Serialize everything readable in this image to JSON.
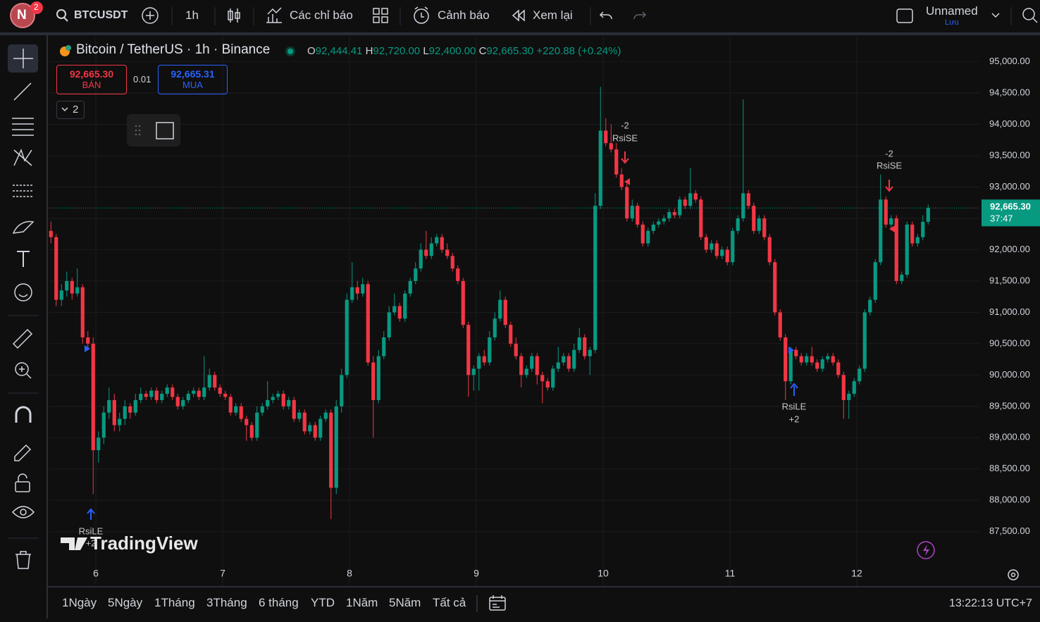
{
  "toolbar": {
    "avatar": "N",
    "badge": "2",
    "symbol": "BTCUSDT",
    "interval": "1h",
    "indicators": "Các chỉ báo",
    "alerts": "Cảnh báo",
    "replay": "Xem lại",
    "layout_name": "Unnamed",
    "save": "Lưu"
  },
  "legend": {
    "o_label": "O",
    "o": "92,444.41",
    "h_label": "H",
    "h": "92,720.00",
    "l_label": "L",
    "l": "92,400.00",
    "c_label": "C",
    "c": "92,665.30",
    "change": "+220.88 (+0.24%)"
  },
  "trade": {
    "sell_price": "92,665.30",
    "sell": "BÁN",
    "quantity": "0.01",
    "buy_price": "92,665.31",
    "buy": "MUA"
  },
  "indicator_toggle": "2",
  "watermark": "TradingView",
  "chart_data": {
    "type": "candlestick",
    "title": "Bitcoin / TetherUS · 1h · Binance",
    "up_color": "#089981",
    "down_color": "#f23645",
    "grid": true,
    "xlim": [
      -0.3,
      175.7
    ],
    "xticks": [
      {
        "value": 8.5,
        "label": "6"
      },
      {
        "value": 32.5,
        "label": "7"
      },
      {
        "value": 56.5,
        "label": "8"
      },
      {
        "value": 80.5,
        "label": "9"
      },
      {
        "value": 104.5,
        "label": "10"
      },
      {
        "value": 128.5,
        "label": "11"
      },
      {
        "value": 152.5,
        "label": "12"
      }
    ],
    "ylim": [
      86620,
      95400
    ],
    "yticks": [
      {
        "value": 87500,
        "label": "87,500.00"
      },
      {
        "value": 88000,
        "label": "88,000.00"
      },
      {
        "value": 88500,
        "label": "88,500.00"
      },
      {
        "value": 89000,
        "label": "89,000.00"
      },
      {
        "value": 89500,
        "label": "89,500.00"
      },
      {
        "value": 90000,
        "label": "90,000.00"
      },
      {
        "value": 90500,
        "label": "90,500.00"
      },
      {
        "value": 91000,
        "label": "91,000.00"
      },
      {
        "value": 91500,
        "label": "91,500.00"
      },
      {
        "value": 92000,
        "label": "92,000.00"
      },
      {
        "value": 92500,
        "label": "92,500.00"
      },
      {
        "value": 93000,
        "label": "93,000.00"
      },
      {
        "value": 93500,
        "label": "93,500.00"
      },
      {
        "value": 94000,
        "label": "94,000.00"
      },
      {
        "value": 94500,
        "label": "94,500.00"
      },
      {
        "value": 95000,
        "label": "95,000.00"
      }
    ],
    "last_price": {
      "value": 92665.3,
      "label": "92,665.30",
      "countdown": "37:47"
    },
    "signals": [
      {
        "name": "RsiLE",
        "qty": "+2"
      },
      {
        "name": "RsiSE",
        "qty": "-2"
      },
      {
        "name": "RsiLE",
        "qty": "+2"
      },
      {
        "name": "RsiSE",
        "qty": "-2"
      }
    ],
    "ohlc": [
      [
        92300,
        92450,
        92100,
        92200
      ],
      [
        92200,
        92250,
        91100,
        91200
      ],
      [
        91200,
        91450,
        91100,
        91350
      ],
      [
        91350,
        91650,
        91250,
        91500
      ],
      [
        91500,
        91550,
        91200,
        91300
      ],
      [
        91300,
        91700,
        91250,
        91400
      ],
      [
        91400,
        91450,
        90500,
        90600
      ],
      [
        90600,
        90700,
        90400,
        90500
      ],
      [
        90500,
        90600,
        88100,
        88800
      ],
      [
        88800,
        89100,
        88600,
        89000
      ],
      [
        89000,
        89500,
        88900,
        89400
      ],
      [
        89400,
        89800,
        89300,
        89600
      ],
      [
        89600,
        89700,
        89100,
        89200
      ],
      [
        89200,
        89400,
        89100,
        89300
      ],
      [
        89300,
        89600,
        89200,
        89500
      ],
      [
        89500,
        89550,
        89300,
        89400
      ],
      [
        89400,
        89700,
        89350,
        89600
      ],
      [
        89600,
        89800,
        89550,
        89700
      ],
      [
        89700,
        89750,
        89600,
        89650
      ],
      [
        89650,
        89800,
        89600,
        89750
      ],
      [
        89750,
        89800,
        89550,
        89600
      ],
      [
        89600,
        89750,
        89550,
        89700
      ],
      [
        89700,
        89850,
        89650,
        89800
      ],
      [
        89800,
        89850,
        89600,
        89650
      ],
      [
        89650,
        89700,
        89450,
        89500
      ],
      [
        89500,
        89650,
        89450,
        89600
      ],
      [
        89600,
        89750,
        89550,
        89700
      ],
      [
        89700,
        89800,
        89650,
        89750
      ],
      [
        89750,
        89800,
        89600,
        89650
      ],
      [
        89650,
        90300,
        89600,
        89800
      ],
      [
        89800,
        90100,
        89750,
        90000
      ],
      [
        90000,
        90050,
        89750,
        89800
      ],
      [
        89800,
        89850,
        89650,
        89700
      ],
      [
        89700,
        89750,
        89600,
        89650
      ],
      [
        89650,
        89700,
        89350,
        89400
      ],
      [
        89400,
        89550,
        89350,
        89500
      ],
      [
        89500,
        89550,
        89250,
        89300
      ],
      [
        89300,
        89350,
        88950,
        89200
      ],
      [
        89200,
        89250,
        88950,
        89000
      ],
      [
        89000,
        89500,
        88950,
        89400
      ],
      [
        89400,
        89550,
        89350,
        89500
      ],
      [
        89500,
        89900,
        89450,
        89600
      ],
      [
        89600,
        89700,
        89550,
        89650
      ],
      [
        89650,
        89750,
        89600,
        89700
      ],
      [
        89700,
        89750,
        89450,
        89500
      ],
      [
        89500,
        89650,
        89450,
        89600
      ],
      [
        89600,
        89650,
        89250,
        89300
      ],
      [
        89300,
        89450,
        89250,
        89400
      ],
      [
        89400,
        89450,
        89050,
        89100
      ],
      [
        89100,
        89250,
        89050,
        89200
      ],
      [
        89200,
        89250,
        88950,
        89000
      ],
      [
        89000,
        89350,
        88950,
        89300
      ],
      [
        89300,
        89450,
        89250,
        89400
      ],
      [
        89400,
        89450,
        87700,
        88200
      ],
      [
        88200,
        89600,
        88100,
        89500
      ],
      [
        89500,
        90100,
        89400,
        90000
      ],
      [
        90000,
        91300,
        89950,
        91200
      ],
      [
        91200,
        91800,
        91150,
        91400
      ],
      [
        91400,
        91500,
        91200,
        91300
      ],
      [
        91300,
        91550,
        91250,
        91450
      ],
      [
        91450,
        91500,
        90150,
        90200
      ],
      [
        90200,
        90300,
        89000,
        89600
      ],
      [
        89600,
        90400,
        89550,
        90300
      ],
      [
        90300,
        90700,
        90250,
        90600
      ],
      [
        90600,
        91100,
        90550,
        91000
      ],
      [
        91000,
        91300,
        90950,
        91100
      ],
      [
        91100,
        91150,
        90850,
        90900
      ],
      [
        90900,
        91350,
        90850,
        91300
      ],
      [
        91300,
        91550,
        91250,
        91500
      ],
      [
        91500,
        91800,
        91450,
        91700
      ],
      [
        91700,
        92100,
        91650,
        92000
      ],
      [
        92000,
        92300,
        91850,
        91900
      ],
      [
        91900,
        92200,
        91850,
        92100
      ],
      [
        92100,
        92250,
        92050,
        92200
      ],
      [
        92200,
        92250,
        91950,
        92000
      ],
      [
        92000,
        92100,
        91850,
        91900
      ],
      [
        91900,
        91950,
        91650,
        91700
      ],
      [
        91700,
        91750,
        91450,
        91500
      ],
      [
        91500,
        91550,
        90750,
        90800
      ],
      [
        90800,
        90850,
        89650,
        90000
      ],
      [
        90000,
        90150,
        89750,
        90100
      ],
      [
        90100,
        90350,
        89750,
        90300
      ],
      [
        90300,
        90400,
        90150,
        90200
      ],
      [
        90200,
        90700,
        90150,
        90600
      ],
      [
        90600,
        91000,
        90550,
        90900
      ],
      [
        90900,
        91350,
        90850,
        91200
      ],
      [
        91200,
        91250,
        90750,
        90800
      ],
      [
        90800,
        90850,
        90450,
        90500
      ],
      [
        90500,
        90600,
        90250,
        90300
      ],
      [
        90300,
        90350,
        89800,
        90000
      ],
      [
        90000,
        90150,
        89950,
        90100
      ],
      [
        90100,
        90350,
        90050,
        90300
      ],
      [
        90300,
        90350,
        89850,
        90000
      ],
      [
        90000,
        90050,
        89550,
        89900
      ],
      [
        89900,
        89950,
        89750,
        89800
      ],
      [
        89800,
        90150,
        89750,
        90100
      ],
      [
        90100,
        90450,
        90050,
        90200
      ],
      [
        90200,
        90350,
        90150,
        90300
      ],
      [
        90300,
        90350,
        90050,
        90100
      ],
      [
        90100,
        90500,
        90050,
        90400
      ],
      [
        90400,
        90750,
        90350,
        90600
      ],
      [
        90600,
        90650,
        90250,
        90300
      ],
      [
        90300,
        90450,
        90000,
        90400
      ],
      [
        90400,
        92900,
        90350,
        92700
      ],
      [
        92700,
        94600,
        92650,
        93900
      ],
      [
        93900,
        94100,
        93650,
        93700
      ],
      [
        93700,
        94000,
        93550,
        93600
      ],
      [
        93600,
        93700,
        93150,
        93200
      ],
      [
        93200,
        93300,
        92950,
        93000
      ],
      [
        93000,
        93050,
        92450,
        92500
      ],
      [
        92500,
        92800,
        92450,
        92700
      ],
      [
        92700,
        92750,
        92350,
        92400
      ],
      [
        92400,
        92450,
        92050,
        92100
      ],
      [
        92100,
        92350,
        92050,
        92300
      ],
      [
        92300,
        92450,
        92250,
        92400
      ],
      [
        92400,
        92500,
        92350,
        92450
      ],
      [
        92450,
        92550,
        92400,
        92500
      ],
      [
        92500,
        92650,
        92450,
        92600
      ],
      [
        92600,
        92650,
        92500,
        92550
      ],
      [
        92550,
        92850,
        92500,
        92800
      ],
      [
        92800,
        92850,
        92650,
        92700
      ],
      [
        92700,
        93300,
        92650,
        92900
      ],
      [
        92900,
        92950,
        92750,
        92800
      ],
      [
        92800,
        92850,
        92150,
        92200
      ],
      [
        92200,
        92250,
        91950,
        92000
      ],
      [
        92000,
        92150,
        91950,
        92100
      ],
      [
        92100,
        92150,
        91850,
        91900
      ],
      [
        91900,
        92050,
        91850,
        92000
      ],
      [
        92000,
        92050,
        91750,
        91800
      ],
      [
        91800,
        92350,
        91750,
        92300
      ],
      [
        92300,
        92550,
        92250,
        92500
      ],
      [
        92500,
        94400,
        92450,
        92900
      ],
      [
        92900,
        92950,
        92650,
        92700
      ],
      [
        92700,
        92750,
        92250,
        92300
      ],
      [
        92300,
        92550,
        92250,
        92500
      ],
      [
        92500,
        92550,
        92150,
        92200
      ],
      [
        92200,
        92250,
        91750,
        91800
      ],
      [
        91800,
        91850,
        90950,
        91000
      ],
      [
        91000,
        91050,
        90550,
        90600
      ],
      [
        90600,
        90650,
        89600,
        89900
      ],
      [
        89900,
        90450,
        89850,
        90400
      ],
      [
        90400,
        90450,
        90250,
        90300
      ],
      [
        90300,
        90350,
        90150,
        90200
      ],
      [
        90200,
        90350,
        90150,
        90300
      ],
      [
        90300,
        90450,
        90150,
        90200
      ],
      [
        90200,
        90250,
        90050,
        90100
      ],
      [
        90100,
        90300,
        90050,
        90250
      ],
      [
        90250,
        90350,
        90200,
        90300
      ],
      [
        90300,
        90350,
        90150,
        90200
      ],
      [
        90200,
        90250,
        89950,
        90000
      ],
      [
        90000,
        90050,
        89300,
        89600
      ],
      [
        89600,
        89750,
        89300,
        89700
      ],
      [
        89700,
        89950,
        89650,
        89900
      ],
      [
        89900,
        90150,
        89850,
        90100
      ],
      [
        90100,
        91050,
        90050,
        91000
      ],
      [
        91000,
        91250,
        90950,
        91200
      ],
      [
        91200,
        91850,
        91150,
        91800
      ],
      [
        91800,
        93200,
        91750,
        92800
      ],
      [
        92800,
        92850,
        92350,
        92400
      ],
      [
        92400,
        92550,
        92350,
        92500
      ],
      [
        92500,
        92550,
        91450,
        91500
      ],
      [
        91500,
        91650,
        91450,
        91600
      ],
      [
        91600,
        92450,
        91550,
        92400
      ],
      [
        92400,
        92450,
        92050,
        92100
      ],
      [
        92100,
        92250,
        92050,
        92200
      ],
      [
        92200,
        92550,
        92150,
        92444.41
      ],
      [
        92444.41,
        92720,
        92400,
        92665.3
      ]
    ]
  },
  "range_bar": {
    "ranges": [
      "1Ngày",
      "5Ngày",
      "1Tháng",
      "3Tháng",
      "6 tháng",
      "YTD",
      "1Năm",
      "5Năm",
      "Tất cả"
    ],
    "clock": "13:22:13 UTC+7"
  }
}
